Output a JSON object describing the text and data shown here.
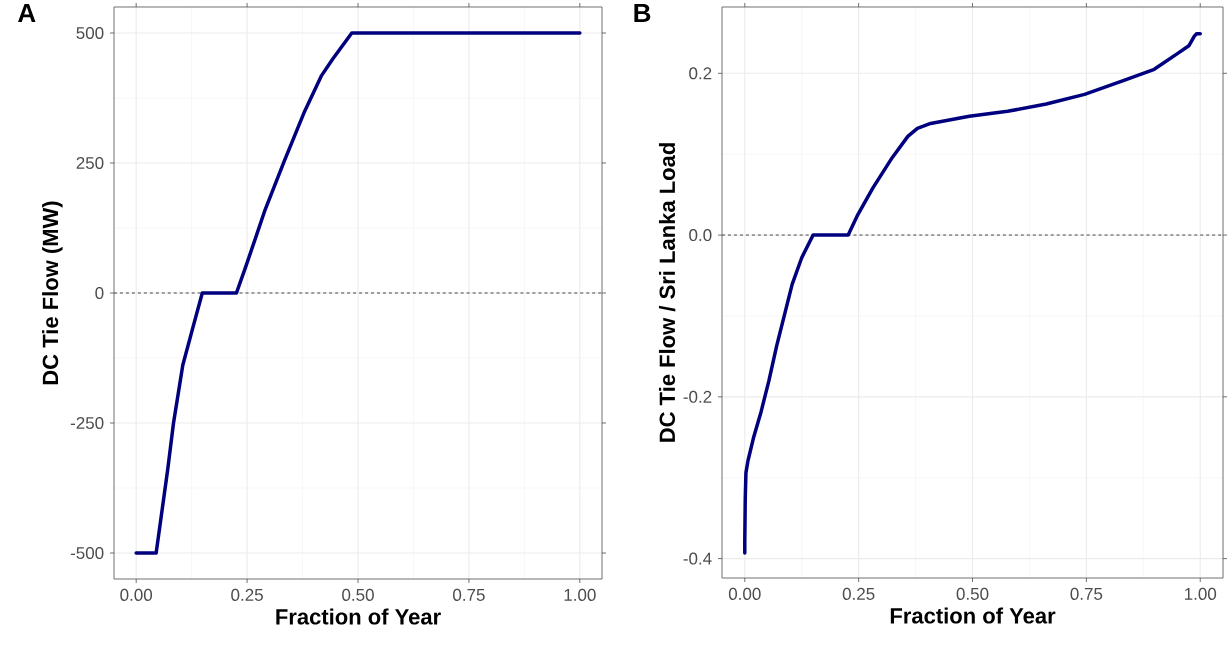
{
  "chart_data": [
    {
      "type": "line",
      "title": "A",
      "xlabel": "Fraction of Year",
      "ylabel": "DC Tie Flow (MW)",
      "color": "#00007f",
      "grid": true,
      "x": [
        0,
        0.045,
        0.071,
        0.084,
        0.105,
        0.127,
        0.149,
        0.226,
        0.248,
        0.291,
        0.334,
        0.378,
        0.417,
        0.443,
        0.486,
        1
      ],
      "values": [
        -500,
        -500,
        -340,
        -251,
        -139,
        -69,
        0,
        0,
        53,
        161,
        254,
        346,
        417,
        450,
        500,
        500
      ],
      "xlim": [
        -0.05,
        1.05
      ],
      "ylim": [
        -550,
        550
      ],
      "xticks": [
        {
          "value": 0,
          "label": "0.00"
        },
        {
          "value": 0.25,
          "label": "0.25"
        },
        {
          "value": 0.5,
          "label": "0.50"
        },
        {
          "value": 0.75,
          "label": "0.75"
        },
        {
          "value": 1,
          "label": "1.00"
        }
      ],
      "yticks": [
        -500,
        -250,
        0,
        250,
        500
      ],
      "ref_lines": [
        {
          "axis": "y",
          "value": 0,
          "line_style": "dashed",
          "color": "#333333"
        }
      ]
    },
    {
      "type": "line",
      "title": "B",
      "xlabel": "Fraction of Year",
      "ylabel": "DC Tie Flow / Sri Lanka Load",
      "color": "#00007f",
      "grid": true,
      "x": [
        0,
        0,
        0.001,
        0.0025,
        0.007,
        0.019,
        0.036,
        0.053,
        0.07,
        0.087,
        0.104,
        0.125,
        0.15,
        0.227,
        0.248,
        0.281,
        0.324,
        0.358,
        0.379,
        0.408,
        0.493,
        0.577,
        0.662,
        0.746,
        0.831,
        0.899,
        0.949,
        0.975,
        0.987,
        0.992,
        1.0
      ],
      "values": [
        -0.393,
        -0.379,
        -0.327,
        -0.294,
        -0.279,
        -0.251,
        -0.218,
        -0.18,
        -0.137,
        -0.099,
        -0.061,
        -0.028,
        0,
        0,
        0.025,
        0.058,
        0.096,
        0.122,
        0.132,
        0.138,
        0.147,
        0.153,
        0.162,
        0.174,
        0.191,
        0.205,
        0.224,
        0.234,
        0.246,
        0.249,
        0.249
      ],
      "xlim": [
        -0.05,
        1.05
      ],
      "ylim": [
        -0.424,
        0.282
      ],
      "xticks": [
        {
          "value": 0,
          "label": "0.00"
        },
        {
          "value": 0.25,
          "label": "0.25"
        },
        {
          "value": 0.5,
          "label": "0.50"
        },
        {
          "value": 0.75,
          "label": "0.75"
        },
        {
          "value": 1,
          "label": "1.00"
        }
      ],
      "yticks": [
        {
          "value": -0.4,
          "label": "-0.4"
        },
        {
          "value": -0.2,
          "label": "-0.2"
        },
        {
          "value": 0,
          "label": "0.0"
        },
        {
          "value": 0.2,
          "label": "0.2"
        }
      ],
      "ref_lines": [
        {
          "axis": "y",
          "value": 0,
          "line_style": "dashed",
          "color": "#333333"
        }
      ]
    }
  ]
}
